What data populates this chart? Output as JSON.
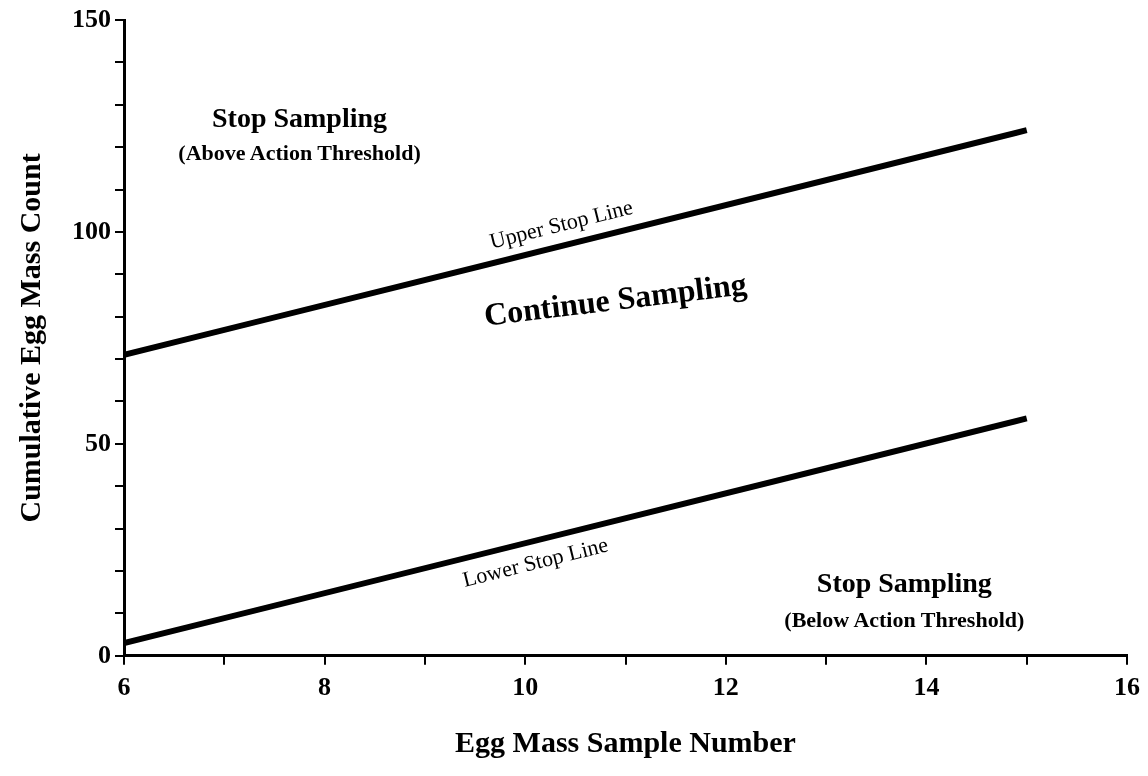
{
  "chart_data": {
    "type": "line",
    "xlabel": "Egg Mass Sample Number",
    "ylabel": "Cumulative Egg Mass Count",
    "x": [
      6,
      15
    ],
    "series": [
      {
        "name": "Upper Stop Line",
        "color": "#000000",
        "values": [
          71,
          124
        ]
      },
      {
        "name": "Lower Stop Line",
        "color": "#000000",
        "values": [
          3,
          56
        ]
      }
    ],
    "xlim": [
      6,
      16
    ],
    "xticks": [
      6,
      {
        "value": 7,
        "label": null
      },
      8,
      {
        "value": 9,
        "label": null
      },
      10,
      {
        "value": 11,
        "label": null
      },
      12,
      {
        "value": 13,
        "label": null
      },
      14,
      {
        "value": 15,
        "label": null
      },
      16
    ],
    "ylim": [
      0,
      150
    ],
    "yticks": [
      0,
      {
        "value": 10,
        "label": null
      },
      {
        "value": 20,
        "label": null
      },
      {
        "value": 30,
        "label": null
      },
      {
        "value": 40,
        "label": null
      },
      50,
      {
        "value": 60,
        "label": null
      },
      {
        "value": 70,
        "label": null
      },
      {
        "value": 80,
        "label": null
      },
      {
        "value": 90,
        "label": null
      },
      100,
      {
        "value": 110,
        "label": null
      },
      {
        "value": 120,
        "label": null
      },
      {
        "value": 130,
        "label": null
      },
      {
        "value": 140,
        "label": null
      },
      150
    ],
    "annotations": [
      "Stop Sampling",
      "(Above Action Threshold)",
      "Continue Sampling",
      "Stop Sampling",
      "(Below Action Threshold)"
    ],
    "grid": false,
    "legend": false,
    "marker": "none",
    "line_style": "solid"
  }
}
